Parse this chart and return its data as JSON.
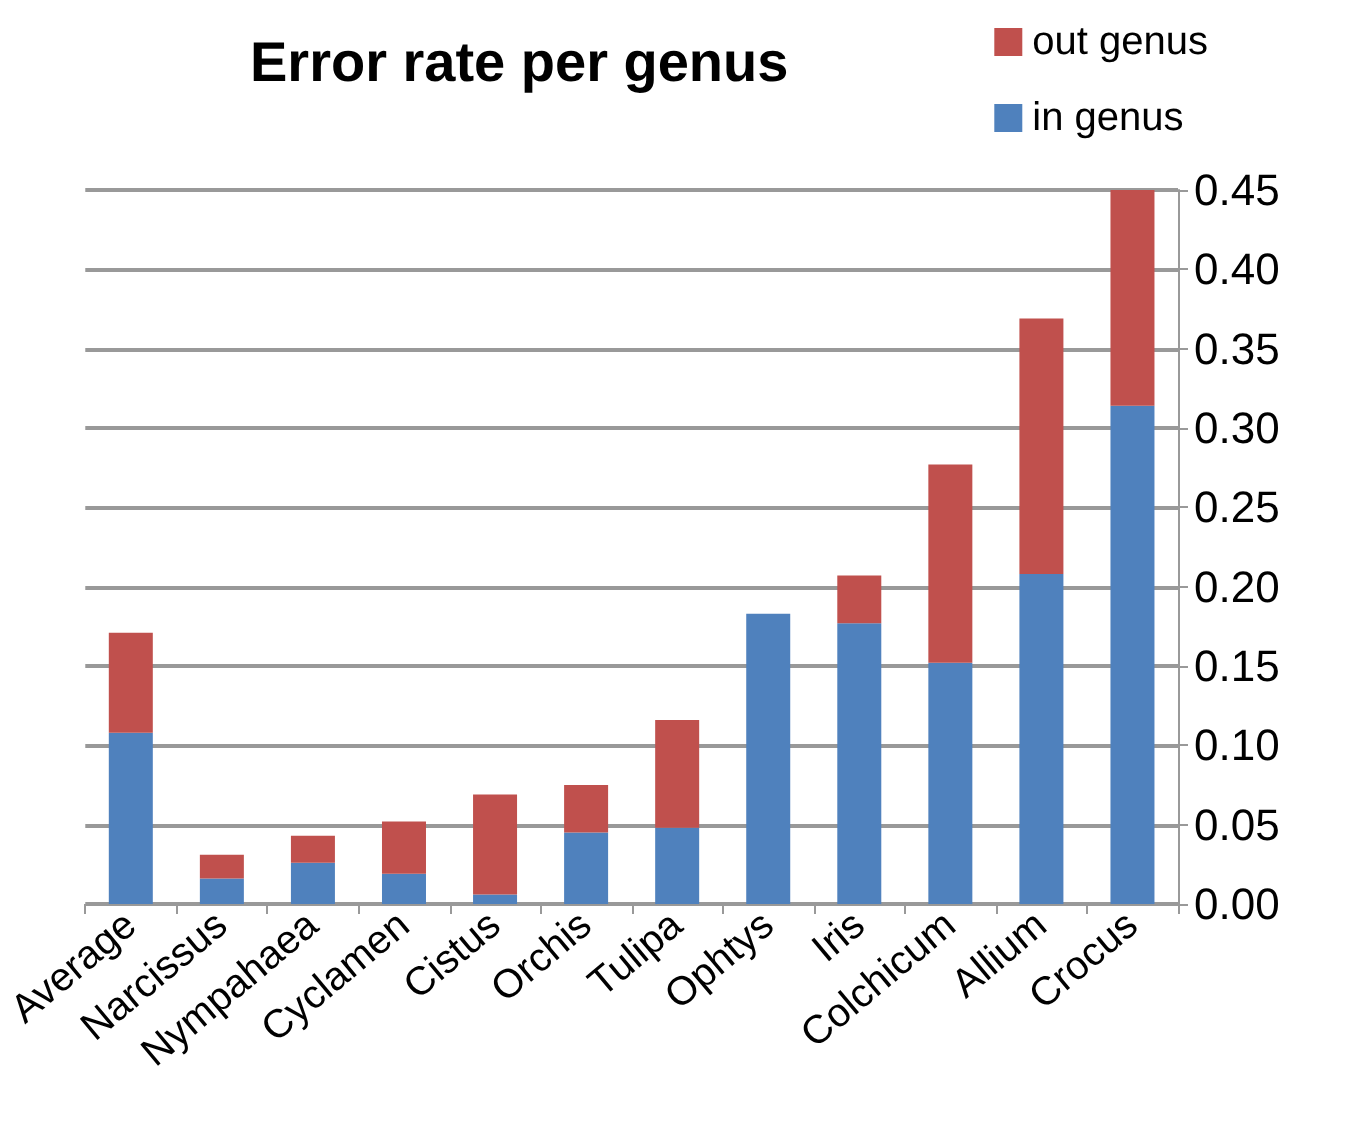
{
  "chart_data": {
    "type": "bar",
    "title": "Error rate per genus",
    "stacked": true,
    "categories": [
      "Average",
      "Narcissus",
      "Nympahaea",
      "Cyclamen",
      "Cistus",
      "Orchis",
      "Tulipa",
      "Ophtys",
      "Iris",
      "Colchicum",
      "Allium",
      "Crocus"
    ],
    "series": [
      {
        "name": "in genus",
        "color": "#4f81bd",
        "values": [
          0.108,
          0.016,
          0.026,
          0.019,
          0.006,
          0.045,
          0.048,
          0.183,
          0.177,
          0.152,
          0.208,
          0.314
        ]
      },
      {
        "name": "out genus",
        "color": "#c0504d",
        "values": [
          0.063,
          0.015,
          0.017,
          0.033,
          0.063,
          0.03,
          0.068,
          0,
          0.03,
          0.125,
          0.161,
          0.136
        ]
      }
    ],
    "ylim": [
      0,
      0.45
    ],
    "yticks": [
      {
        "value": 0,
        "label": "0.00"
      },
      0.05,
      {
        "value": 0.1,
        "label": "0.10"
      },
      0.15,
      {
        "value": 0.2,
        "label": "0.20"
      },
      0.25,
      {
        "value": 0.3,
        "label": "0.30"
      },
      0.35,
      {
        "value": 0.4,
        "label": "0.40"
      },
      0.45
    ],
    "grid": "y",
    "legend": "top right"
  }
}
